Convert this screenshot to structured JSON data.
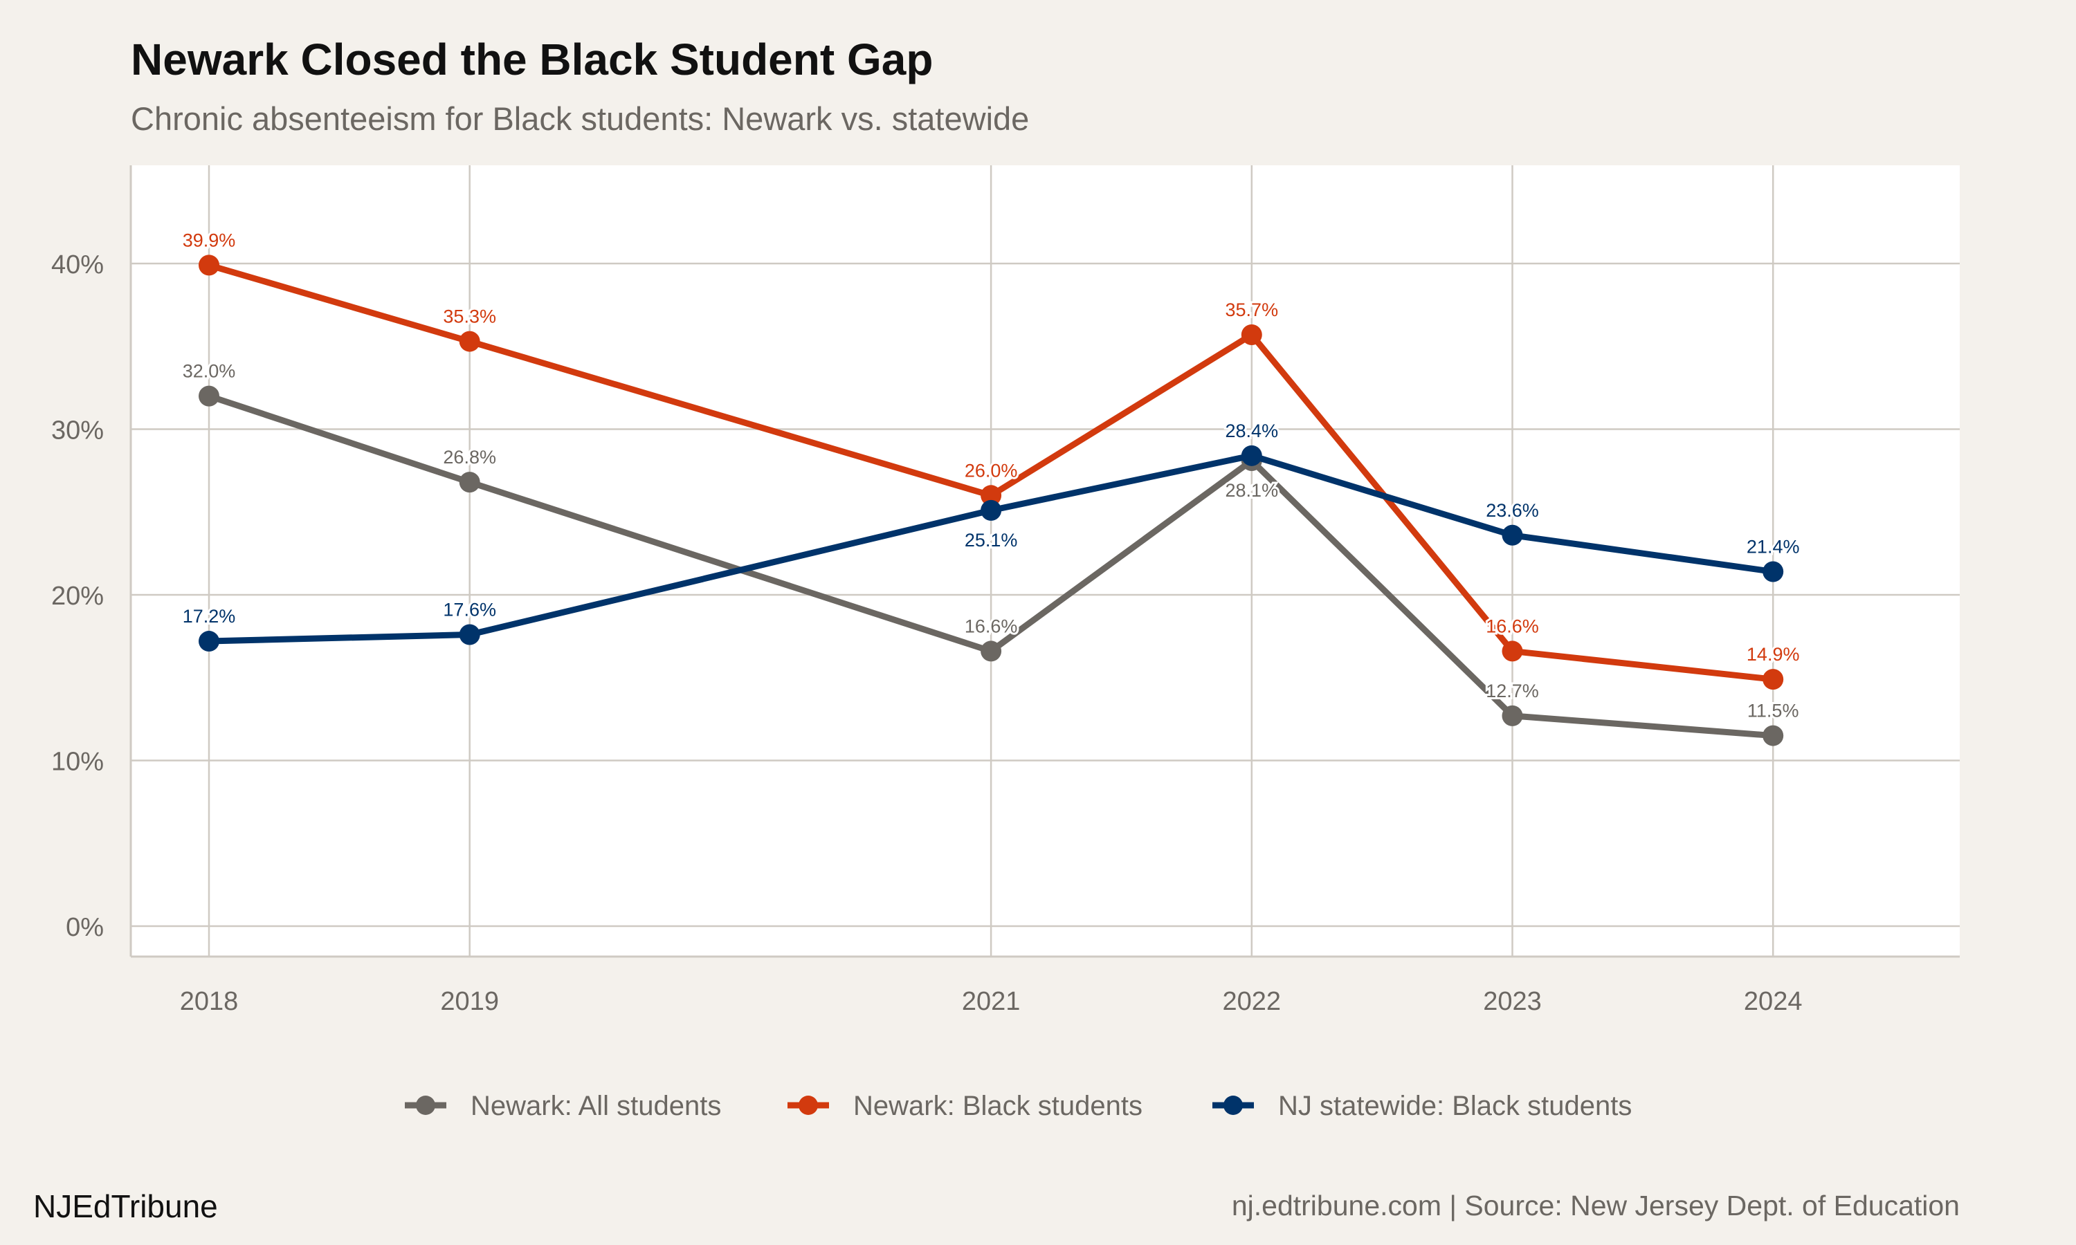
{
  "title": "Newark Closed the Black Student Gap",
  "subtitle": "Chronic absenteeism for Black students: Newark vs. statewide",
  "footer": {
    "brand": "NJEdTribune",
    "source": "nj.edtribune.com | Source: New Jersey Dept. of Education"
  },
  "colors": {
    "background": "#f4f1ec",
    "panel": "#ffffff",
    "grid": "#cfcac3",
    "all_students": "#6b6762",
    "newark_black": "#d23a0e",
    "nj_black": "#00336a"
  },
  "chart_data": {
    "type": "line",
    "title": "Newark Closed the Black Student Gap",
    "subtitle": "Chronic absenteeism for Black students: Newark vs. statewide",
    "xlabel": "",
    "ylabel": "",
    "x": [
      2018,
      2019,
      2021,
      2022,
      2023,
      2024
    ],
    "xticks": [
      "2018",
      "2019",
      "2021",
      "2022",
      "2023",
      "2024"
    ],
    "yticks": [
      "0%",
      "10%",
      "20%",
      "30%",
      "40%"
    ],
    "ylim": [
      0,
      45
    ],
    "grid": true,
    "legend_position": "bottom",
    "series": [
      {
        "name": "Newark: All students",
        "color": "#6b6762",
        "values": [
          32.0,
          26.8,
          16.6,
          28.1,
          12.7,
          11.5
        ],
        "labels": [
          "32.0%",
          "26.8%",
          "16.6%",
          "28.1%",
          "12.7%",
          "11.5%"
        ]
      },
      {
        "name": "Newark: Black students",
        "color": "#d23a0e",
        "values": [
          39.9,
          35.3,
          26.0,
          35.7,
          16.6,
          14.9
        ],
        "labels": [
          "39.9%",
          "35.3%",
          "26.0%",
          "35.7%",
          "16.6%",
          "14.9%"
        ]
      },
      {
        "name": "NJ statewide: Black students",
        "color": "#00336a",
        "values": [
          17.2,
          17.6,
          25.1,
          28.4,
          23.6,
          21.4
        ],
        "labels": [
          "17.2%",
          "17.6%",
          "25.1%",
          "28.4%",
          "23.6%",
          "21.4%"
        ]
      }
    ]
  }
}
